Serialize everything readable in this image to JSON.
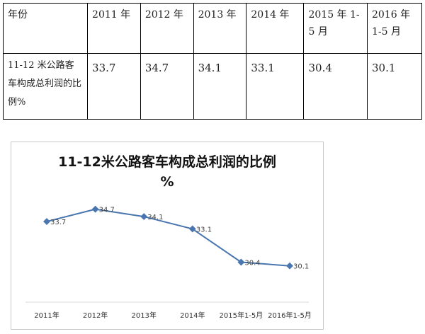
{
  "table": {
    "header": [
      "年份",
      "2011 年",
      "2012 年",
      "2013 年",
      "2014 年",
      "2015 年 1-5 月",
      "2016 年 1-5 月"
    ],
    "row": [
      "11-12 米公路客车构成总利润的比例%",
      "33.7",
      "34.7",
      "34.1",
      "33.1",
      "30.4",
      "30.1"
    ]
  },
  "chart_data": {
    "type": "line",
    "title": "11-12米公路客车构成总利润的比例",
    "title_line2": "%",
    "categories": [
      "2011年",
      "2012年",
      "2013年",
      "2014年",
      "2015年1-5月",
      "2016年1-5月"
    ],
    "values": [
      33.7,
      34.7,
      34.1,
      33.1,
      30.4,
      30.1
    ],
    "data_labels": [
      "33.7",
      "34.7",
      "34.1",
      "33.1",
      "30.4",
      "30.1"
    ],
    "ylim": [
      27.5,
      36
    ],
    "grid": false,
    "legend": "none",
    "colors": {
      "line": "#4a76b0",
      "marker": "#4a76b0"
    }
  }
}
